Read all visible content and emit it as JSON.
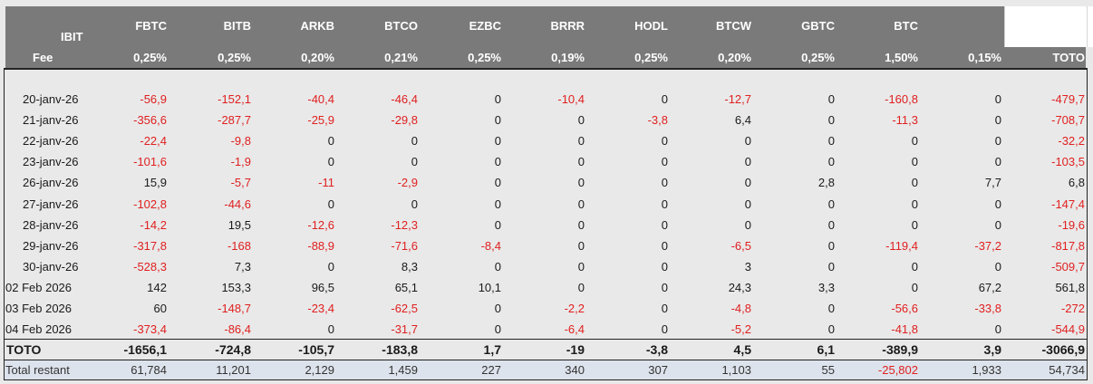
{
  "header": {
    "corner_top": "IBIT",
    "corner_bottom": "Fee",
    "columns": [
      {
        "name": "FBTC",
        "fee": "0,25%"
      },
      {
        "name": "BITB",
        "fee": "0,25%"
      },
      {
        "name": "ARKB",
        "fee": "0,20%"
      },
      {
        "name": "BTCO",
        "fee": "0,21%"
      },
      {
        "name": "EZBC",
        "fee": "0,25%"
      },
      {
        "name": "BRRR",
        "fee": "0,19%"
      },
      {
        "name": "HODL",
        "fee": "0,25%"
      },
      {
        "name": "BTCW",
        "fee": "0,20%"
      },
      {
        "name": "GBTC",
        "fee": "0,25%"
      },
      {
        "name": "BTC",
        "fee": "1,50%"
      },
      {
        "name": "",
        "fee": "0,15%"
      },
      {
        "name": "",
        "fee": "TOTO"
      }
    ]
  },
  "rows": [
    {
      "date": "20-janv-26",
      "values": [
        "-56,9",
        "-152,1",
        "-40,4",
        "-46,4",
        "0",
        "-10,4",
        "0",
        "-12,7",
        "0",
        "-160,8",
        "0",
        "-479,7"
      ]
    },
    {
      "date": "21-janv-26",
      "values": [
        "-356,6",
        "-287,7",
        "-25,9",
        "-29,8",
        "0",
        "0",
        "-3,8",
        "6,4",
        "0",
        "-11,3",
        "0",
        "-708,7"
      ]
    },
    {
      "date": "22-janv-26",
      "values": [
        "-22,4",
        "-9,8",
        "0",
        "0",
        "0",
        "0",
        "0",
        "0",
        "0",
        "0",
        "0",
        "-32,2"
      ]
    },
    {
      "date": "23-janv-26",
      "values": [
        "-101,6",
        "-1,9",
        "0",
        "0",
        "0",
        "0",
        "0",
        "0",
        "0",
        "0",
        "0",
        "-103,5"
      ]
    },
    {
      "date": "26-janv-26",
      "values": [
        "15,9",
        "-5,7",
        "-11",
        "-2,9",
        "0",
        "0",
        "0",
        "0",
        "2,8",
        "0",
        "7,7",
        "6,8"
      ]
    },
    {
      "date": "27-janv-26",
      "values": [
        "-102,8",
        "-44,6",
        "0",
        "0",
        "0",
        "0",
        "0",
        "0",
        "0",
        "0",
        "0",
        "-147,4"
      ]
    },
    {
      "date": "28-janv-26",
      "values": [
        "-14,2",
        "19,5",
        "-12,6",
        "-12,3",
        "0",
        "0",
        "0",
        "0",
        "0",
        "0",
        "0",
        "-19,6"
      ]
    },
    {
      "date": "29-janv-26",
      "values": [
        "-317,8",
        "-168",
        "-88,9",
        "-71,6",
        "-8,4",
        "0",
        "0",
        "-6,5",
        "0",
        "-119,4",
        "-37,2",
        "-817,8"
      ]
    },
    {
      "date": "30-janv-26",
      "values": [
        "-528,3",
        "7,3",
        "0",
        "8,3",
        "0",
        "0",
        "0",
        "3",
        "0",
        "0",
        "0",
        "-509,7"
      ]
    },
    {
      "date": "02 Feb 2026",
      "values": [
        "142",
        "153,3",
        "96,5",
        "65,1",
        "10,1",
        "0",
        "0",
        "24,3",
        "3,3",
        "0",
        "67,2",
        "561,8"
      ]
    },
    {
      "date": "03 Feb 2026",
      "values": [
        "60",
        "-148,7",
        "-23,4",
        "-62,5",
        "0",
        "-2,2",
        "0",
        "-4,8",
        "0",
        "-56,6",
        "-33,8",
        "-272"
      ]
    },
    {
      "date": "04 Feb 2026",
      "values": [
        "-373,4",
        "-86,4",
        "0",
        "-31,7",
        "0",
        "-6,4",
        "0",
        "-5,2",
        "0",
        "-41,8",
        "0",
        "-544,9"
      ]
    }
  ],
  "totals": {
    "label": "TOTO",
    "values": [
      "-1656,1",
      "-724,8",
      "-105,7",
      "-183,8",
      "1,7",
      "-19",
      "-3,8",
      "4,5",
      "6,1",
      "-389,9",
      "3,9",
      "-3066,9"
    ]
  },
  "remaining": {
    "label": "Total restant",
    "values": [
      "61,784",
      "11,201",
      "2,129",
      "1,459",
      "227",
      "340",
      "307",
      "1,103",
      "55",
      "-25,802",
      "1,933",
      "54,734"
    ]
  },
  "colors": {
    "header_bg": "#7a7a7a",
    "negative": "#e02020",
    "sheet_bg": "#e9e9e9",
    "remaining_bg": "#dde3ec"
  }
}
